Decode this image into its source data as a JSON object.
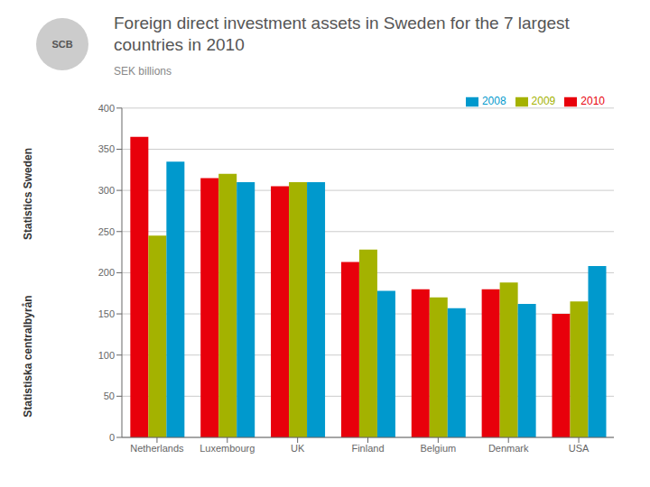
{
  "chart_data": {
    "type": "bar",
    "title": "Foreign direct investment assets in Sweden for the 7 largest countries in 2010",
    "subtitle": "SEK billions",
    "annotations": [
      "Statistics Sweden",
      "Statistiska centralbyrån",
      "SCB"
    ],
    "categories": [
      "Netherlands",
      "Luxembourg",
      "UK",
      "Finland",
      "Belgium",
      "Denmark",
      "USA"
    ],
    "series": [
      {
        "name": "2010",
        "color": "#e8000b",
        "values": [
          365,
          315,
          305,
          213,
          180,
          180,
          150
        ]
      },
      {
        "name": "2009",
        "color": "#a4b200",
        "values": [
          245,
          320,
          310,
          228,
          170,
          188,
          165
        ]
      },
      {
        "name": "2008",
        "color": "#0099cd",
        "values": [
          335,
          310,
          310,
          178,
          157,
          162,
          208
        ]
      }
    ],
    "ylim": [
      0,
      400
    ],
    "yticks": [
      0,
      50,
      100,
      150,
      200,
      250,
      300,
      350,
      400
    ],
    "grid": true,
    "legend": "upper right"
  }
}
